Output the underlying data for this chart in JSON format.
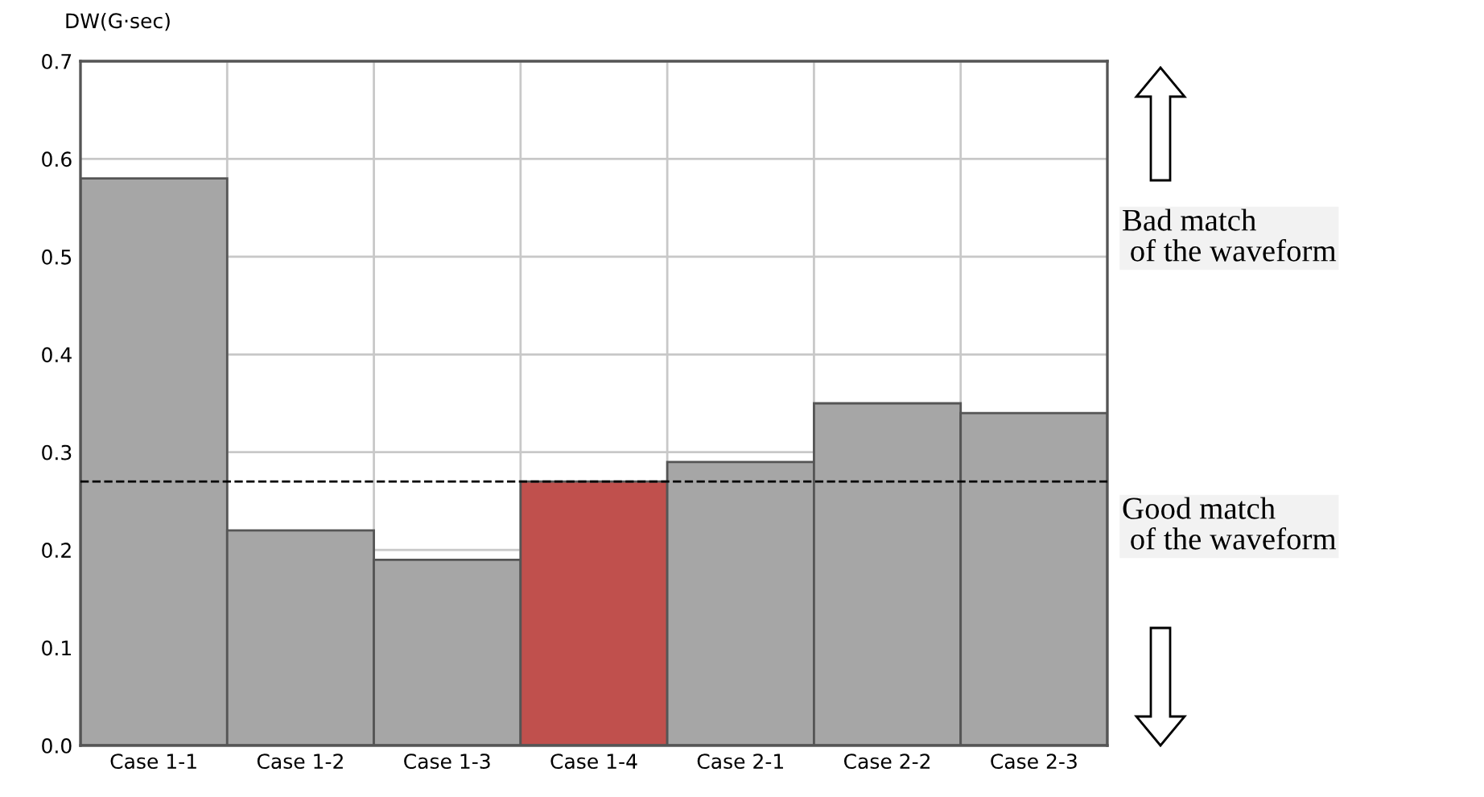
{
  "chart_data": {
    "type": "bar",
    "ylabel": "DW(G·sec)",
    "categories": [
      "Case 1-1",
      "Case 1-2",
      "Case 1-3",
      "Case 1-4",
      "Case 2-1",
      "Case 2-2",
      "Case 2-3"
    ],
    "values": [
      0.58,
      0.22,
      0.19,
      0.27,
      0.29,
      0.35,
      0.34
    ],
    "colors": [
      "#a6a6a6",
      "#a6a6a6",
      "#a6a6a6",
      "#c0504d",
      "#a6a6a6",
      "#a6a6a6",
      "#a6a6a6"
    ],
    "ylim": [
      0,
      0.7
    ],
    "yticks": [
      {
        "value": 0,
        "label": "0.0"
      },
      0.1,
      0.2,
      0.3,
      0.4,
      0.5,
      0.6,
      0.7
    ],
    "grid": true,
    "ref_lines": [
      {
        "axis": "y",
        "value": 0.27,
        "color": "#000000",
        "line_style": "dashed"
      }
    ],
    "annotations": [
      "Bad match\n of the waveform",
      "Good match\n of the waveform"
    ]
  }
}
